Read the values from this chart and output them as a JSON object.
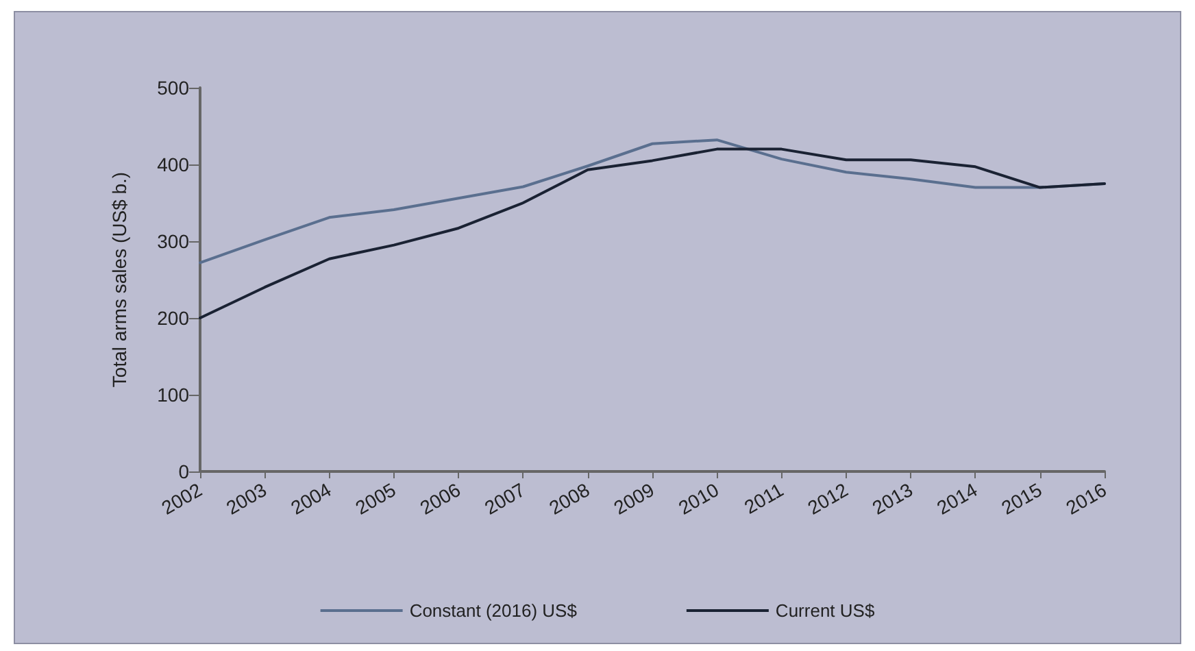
{
  "chart_data": {
    "type": "line",
    "ylabel": "Total arms sales (US$ b.)",
    "categories": [
      "2002",
      "2003",
      "2004",
      "2005",
      "2006",
      "2007",
      "2008",
      "2009",
      "2010",
      "2011",
      "2012",
      "2013",
      "2014",
      "2015",
      "2016"
    ],
    "series": [
      {
        "name": "Constant (2016) US$",
        "color": "#5a6f8f",
        "values": [
          272,
          302,
          331,
          341,
          356,
          371,
          398,
          427,
          432,
          407,
          390,
          381,
          370,
          370,
          375
        ]
      },
      {
        "name": "Current US$",
        "color": "#1a2233",
        "values": [
          200,
          240,
          277,
          295,
          317,
          350,
          393,
          405,
          420,
          420,
          406,
          406,
          397,
          370,
          375
        ]
      }
    ],
    "ylim": [
      0,
      500
    ],
    "yticks": [
      0,
      100,
      200,
      300,
      400,
      500
    ],
    "grid": false,
    "legend": "bottom",
    "marker": "none",
    "line_style": "solid"
  }
}
